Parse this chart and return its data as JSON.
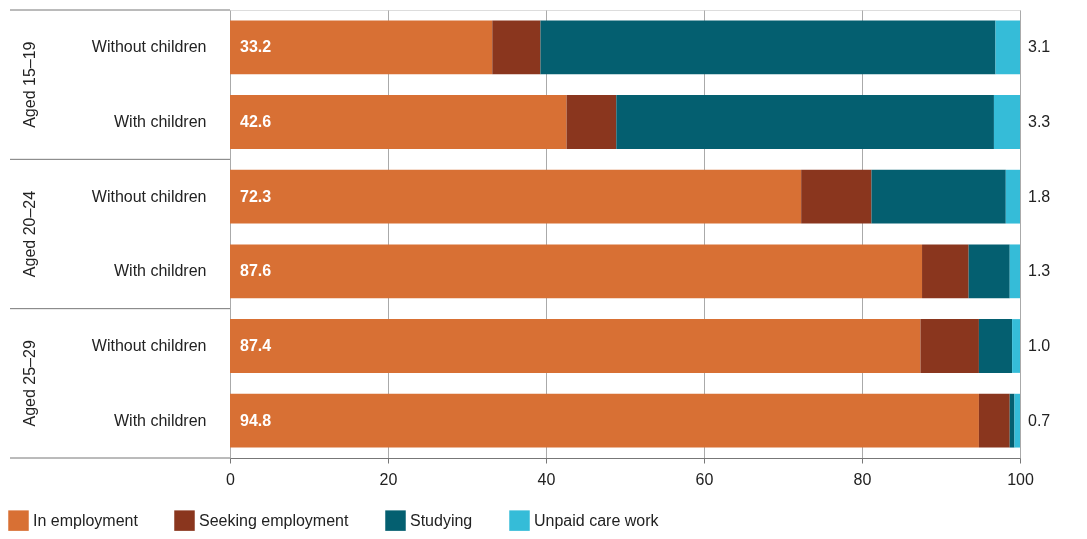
{
  "chart_data": {
    "type": "bar",
    "orientation": "horizontal",
    "stacked": true,
    "categories": [
      "Without children",
      "With children",
      "Without children",
      "With children",
      "Without children",
      "With children"
    ],
    "series": [
      {
        "name": "In employment",
        "color": "#d87034",
        "values": [
          33.2,
          42.6,
          72.3,
          87.6,
          87.4,
          94.8
        ],
        "value_labels": [
          "33.2",
          "42.6",
          "72.3",
          "87.6",
          "87.4",
          "94.8"
        ]
      },
      {
        "name": "Seeking employment",
        "color": "#8a361e",
        "values": [
          6.1,
          6.3,
          8.9,
          5.9,
          7.4,
          3.9
        ]
      },
      {
        "name": "Studying",
        "color": "#045f70",
        "values": [
          57.6,
          47.8,
          17.0,
          5.2,
          4.2,
          0.6
        ]
      },
      {
        "name": "Unpaid care work",
        "color": "#35bcd8",
        "values": [
          3.1,
          3.3,
          1.8,
          1.3,
          1.0,
          0.7
        ],
        "value_labels": [
          "3.1",
          "3.3",
          "1.8",
          "1.3",
          "1.0",
          "0.7"
        ]
      }
    ],
    "annotations": [
      "Aged 15–19",
      "Aged 20–24",
      "Aged 25–29"
    ],
    "xlim": [
      0,
      100
    ],
    "xticks": [
      0,
      20,
      40,
      60,
      80,
      100
    ],
    "grid": "x",
    "legend": "bottom"
  }
}
